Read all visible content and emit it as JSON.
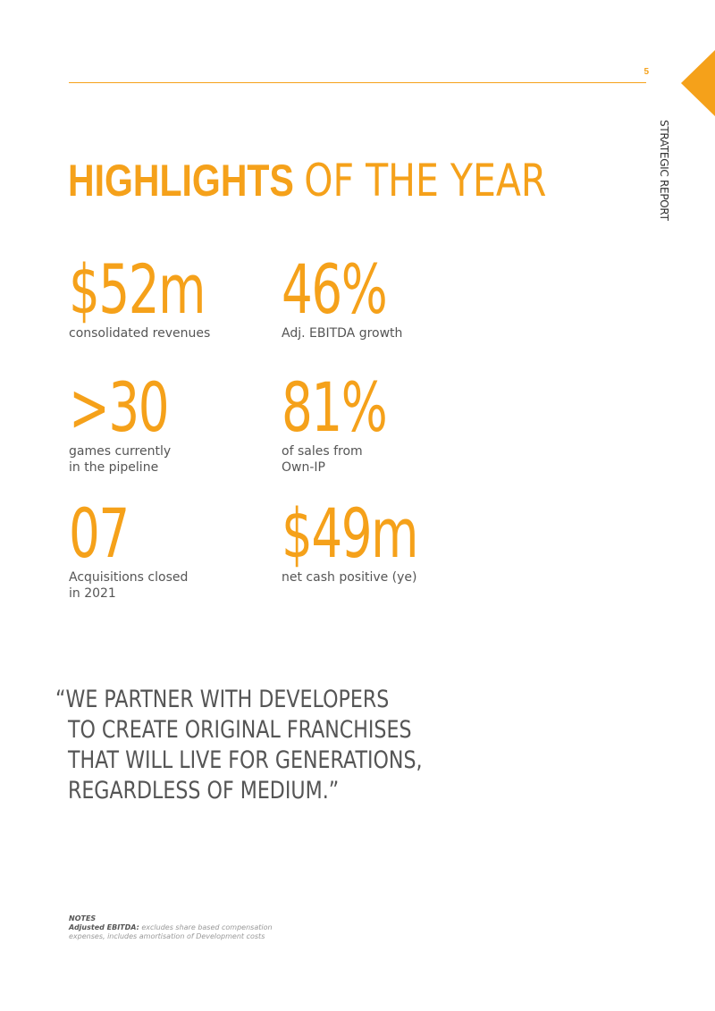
{
  "header": {
    "page_number": "5",
    "section_label": "STRATEGIC REPORT",
    "accent_color": "#f5a11a"
  },
  "headline": {
    "bold": "HIGHLIGHTS",
    "light": "OF THE YEAR"
  },
  "stats": [
    {
      "value": "$52m",
      "label": "consolidated revenues"
    },
    {
      "value": "46%",
      "label": "Adj. EBITDA growth"
    },
    {
      "value": ">30",
      "label_lines": [
        "games currently",
        "in the pipeline"
      ]
    },
    {
      "value": "81%",
      "label_lines": [
        "of sales from",
        "Own-IP"
      ]
    },
    {
      "value": "07",
      "label_lines": [
        "Acquisitions closed",
        "in 2021"
      ]
    },
    {
      "value": "$49m",
      "label": "net cash positive (ye)"
    }
  ],
  "quote": {
    "lines": [
      "“WE PARTNER WITH DEVELOPERS",
      "TO CREATE ORIGINAL FRANCHISES",
      "THAT WILL LIVE FOR GENERATIONS,",
      "REGARDLESS OF MEDIUM.”"
    ]
  },
  "notes": {
    "title": "NOTES",
    "term": "Adjusted EBITDA:",
    "definition": "excludes share based compensation expenses, includes amortisation of Development costs"
  }
}
